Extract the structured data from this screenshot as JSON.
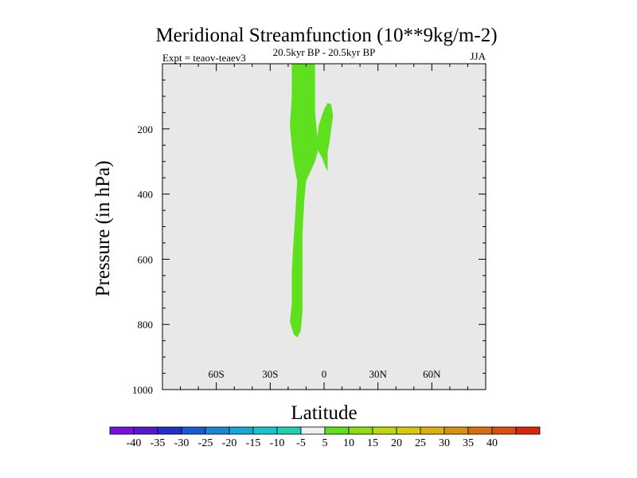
{
  "chart_data": {
    "type": "contour",
    "title": "Meridional Streamfunction (10**9kg/m-2)",
    "subtitle": "20.5kyr BP - 20.5kyr BP",
    "left_string": "Expt = teaov-teaev3",
    "right_string": "JJA",
    "xlabel": "Latitude",
    "ylabel": "Pressure (in hPa)",
    "xlim": [
      -90,
      90
    ],
    "ylim": [
      1000,
      0
    ],
    "xticks": [
      {
        "value": -60,
        "label": "60S"
      },
      {
        "value": -30,
        "label": "30S"
      },
      {
        "value": 0,
        "label": "0"
      },
      {
        "value": 30,
        "label": "30N"
      },
      {
        "value": 60,
        "label": "60N"
      }
    ],
    "yticks": [
      {
        "value": 200,
        "label": "200"
      },
      {
        "value": 400,
        "label": "400"
      },
      {
        "value": 600,
        "label": "600"
      },
      {
        "value": 800,
        "label": "800"
      },
      {
        "value": 1000,
        "label": "1000"
      }
    ],
    "background_color": "#e8e8e8",
    "contour_regions": [
      {
        "level_range": [
          5,
          10
        ],
        "color": "#5ee01e",
        "polygon": [
          [
            -18,
            0
          ],
          [
            -5,
            0
          ],
          [
            -5,
            70
          ],
          [
            -5,
            150
          ],
          [
            -4,
            210
          ],
          [
            -3,
            260
          ],
          [
            -5,
            300
          ],
          [
            -10,
            360
          ],
          [
            -11,
            420
          ],
          [
            -12,
            520
          ],
          [
            -12,
            640
          ],
          [
            -12,
            760
          ],
          [
            -13,
            820
          ],
          [
            -15,
            840
          ],
          [
            -17,
            830
          ],
          [
            -19,
            790
          ],
          [
            -18,
            740
          ],
          [
            -18,
            640
          ],
          [
            -17,
            540
          ],
          [
            -16,
            460
          ],
          [
            -15,
            360
          ],
          [
            -17,
            300
          ],
          [
            -18,
            250
          ],
          [
            -19,
            190
          ],
          [
            -18,
            100
          ]
        ]
      },
      {
        "level_range": [
          5,
          10
        ],
        "color": "#5ee01e",
        "polygon": [
          [
            0,
            140
          ],
          [
            2,
            120
          ],
          [
            4,
            125
          ],
          [
            5,
            160
          ],
          [
            4,
            200
          ],
          [
            3,
            240
          ],
          [
            2,
            270
          ],
          [
            2,
            330
          ],
          [
            1,
            320
          ],
          [
            -1,
            290
          ],
          [
            -3,
            270
          ],
          [
            -4,
            235
          ],
          [
            -3,
            190
          ]
        ]
      }
    ],
    "colorbar": {
      "colors": [
        "#7a10e0",
        "#5518cc",
        "#2030c8",
        "#1a5ad0",
        "#1a86d8",
        "#18a8d8",
        "#18c4d0",
        "#20d0b0",
        "#f0f0f0",
        "#5ee01e",
        "#90dc14",
        "#bcd812",
        "#d8c810",
        "#dcb010",
        "#d89010",
        "#d87010",
        "#d85010",
        "#d82808"
      ],
      "labels": [
        "-40",
        "-35",
        "-30",
        "-25",
        "-20",
        "-15",
        "-10",
        "-5",
        "5",
        "10",
        "15",
        "20",
        "25",
        "30",
        "35",
        "40"
      ]
    }
  }
}
